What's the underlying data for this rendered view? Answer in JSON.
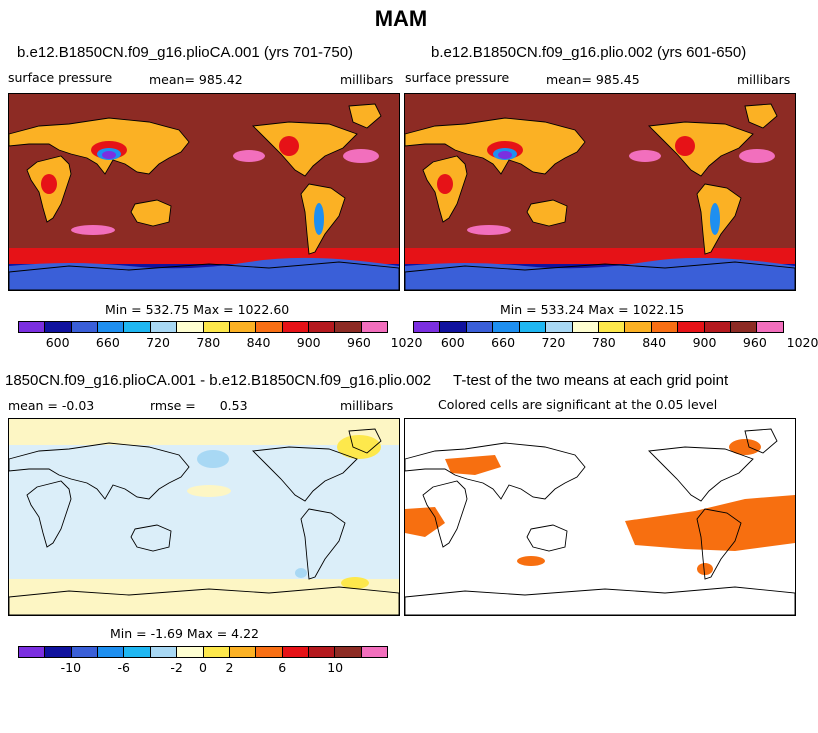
{
  "title": "MAM",
  "palette": [
    "#7b2fe0",
    "#10129e",
    "#3a5fd8",
    "#1e8ff0",
    "#1fb7f2",
    "#a8d8f4",
    "#fefed1",
    "#fde84c",
    "#fbb124",
    "#f86f14",
    "#e61217",
    "#b4191e",
    "#8d2b24",
    "#f26fbd"
  ],
  "colors": {
    "land_high": "#e61217",
    "land_mid": "#fbb124",
    "land_low": "#fde84c",
    "ocean_base": "#8d2b24",
    "ocean_high": "#f26fbd",
    "antarctic": "#10129e",
    "diff_neg": "#dbeef9",
    "diff_pos": "#fdf6c4",
    "signif": "#f76f10"
  },
  "chart_data": [
    {
      "type": "heatmap",
      "title": "b.e12.B1850CN.f09_g16.plioCA.001 (yrs 701-750)",
      "variable": "surface pressure",
      "mean_label": "mean=",
      "mean": "985.42",
      "units": "millibars",
      "min_max": "Min = 532.75 Max = 1022.60",
      "colorbar_ticks": [
        "600",
        "660",
        "720",
        "780",
        "840",
        "900",
        "960",
        "1020"
      ]
    },
    {
      "type": "heatmap",
      "title": "b.e12.B1850CN.f09_g16.plio.002 (yrs 601-650)",
      "variable": "surface pressure",
      "mean_label": "mean=",
      "mean": "985.45",
      "units": "millibars",
      "min_max": "Min = 533.24 Max = 1022.15",
      "colorbar_ticks": [
        "600",
        "660",
        "720",
        "780",
        "840",
        "900",
        "960",
        "1020"
      ]
    },
    {
      "type": "heatmap",
      "title": "1850CN.f09_g16.plioCA.001 - b.e12.B1850CN.f09_g16.plio.002",
      "mean_label": "mean =",
      "mean": "-0.03",
      "rmse_label": "rmse =",
      "rmse": "0.53",
      "units": "millibars",
      "min_max": "Min = -1.69 Max = 4.22",
      "colorbar_ticks": [
        "-10",
        "-6",
        "-2",
        "0",
        "2",
        "6",
        "10"
      ]
    },
    {
      "type": "heatmap",
      "title": "T-test of the two means at each grid point",
      "subtitle": "Colored cells are significant at the 0.05 level"
    }
  ]
}
